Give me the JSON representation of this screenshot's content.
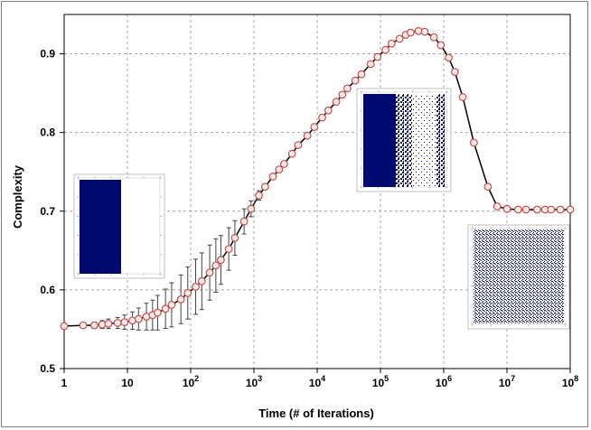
{
  "chart_data": {
    "type": "line",
    "title": "",
    "xlabel": "Time (# of Iterations)",
    "ylabel": "Complexity",
    "xscale": "log",
    "xlim": [
      1,
      100000000
    ],
    "ylim": [
      0.5,
      0.95
    ],
    "grid": true,
    "x_tick_labels": [
      {
        "base": "1",
        "exp": ""
      },
      {
        "base": "10",
        "exp": ""
      },
      {
        "base": "10",
        "exp": "2"
      },
      {
        "base": "10",
        "exp": "3"
      },
      {
        "base": "10",
        "exp": "4"
      },
      {
        "base": "10",
        "exp": "5"
      },
      {
        "base": "10",
        "exp": "6"
      },
      {
        "base": "10",
        "exp": "7"
      },
      {
        "base": "10",
        "exp": "8"
      }
    ],
    "x_tick_values": [
      1,
      10,
      100,
      1000,
      10000,
      100000,
      1000000,
      10000000,
      100000000
    ],
    "y_ticks": [
      0.5,
      0.6,
      0.7,
      0.8,
      0.9
    ],
    "y_tick_labels": [
      "0.5",
      "0.6",
      "0.7",
      "0.8",
      "0.9"
    ],
    "marker_color": "#c0504d",
    "marker_fill": "#fde9e7",
    "line_color": "#000000",
    "series": [
      {
        "x": [
          1,
          2,
          3,
          4,
          5,
          7,
          9,
          12,
          15,
          20,
          25,
          30,
          40,
          50,
          70,
          90,
          120,
          150,
          200,
          250,
          300,
          400,
          500,
          700,
          900,
          1200,
          1500,
          2000,
          2500,
          3000,
          4000,
          5000,
          7000,
          9000,
          12000,
          15000,
          20000,
          25000,
          30000,
          40000,
          50000,
          70000,
          90000,
          120000,
          150000,
          200000,
          250000,
          300000,
          400000,
          500000,
          700000,
          900000,
          1200000,
          1500000,
          2000000,
          3000000,
          5000000,
          7000000,
          10000000,
          15000000,
          20000000,
          30000000,
          40000000,
          50000000,
          70000000,
          100000000
        ],
        "y": [
          0.554,
          0.555,
          0.555,
          0.556,
          0.557,
          0.558,
          0.559,
          0.561,
          0.563,
          0.566,
          0.568,
          0.571,
          0.576,
          0.581,
          0.588,
          0.596,
          0.604,
          0.611,
          0.622,
          0.631,
          0.638,
          0.652,
          0.666,
          0.687,
          0.703,
          0.72,
          0.731,
          0.744,
          0.753,
          0.76,
          0.773,
          0.784,
          0.796,
          0.807,
          0.819,
          0.828,
          0.839,
          0.848,
          0.856,
          0.866,
          0.874,
          0.887,
          0.896,
          0.905,
          0.913,
          0.919,
          0.924,
          0.927,
          0.929,
          0.928,
          0.921,
          0.911,
          0.895,
          0.877,
          0.845,
          0.787,
          0.731,
          0.706,
          0.703,
          0.702,
          0.702,
          0.702,
          0.702,
          0.702,
          0.702,
          0.702
        ],
        "err": [
          0,
          0.003,
          0.004,
          0.005,
          0.006,
          0.007,
          0.009,
          0.011,
          0.014,
          0.017,
          0.019,
          0.022,
          0.025,
          0.028,
          0.031,
          0.033,
          0.035,
          0.036,
          0.035,
          0.034,
          0.031,
          0.027,
          0.022,
          0.016,
          0.01,
          0.006,
          0.003,
          0,
          0,
          0,
          0,
          0,
          0,
          0,
          0,
          0,
          0,
          0,
          0,
          0,
          0,
          0,
          0,
          0,
          0,
          0,
          0,
          0,
          0,
          0,
          0,
          0,
          0,
          0,
          0,
          0,
          0,
          0,
          0,
          0,
          0,
          0,
          0,
          0,
          0,
          0
        ]
      }
    ],
    "insets": [
      {
        "kind": "solid-block",
        "near_x": 10,
        "fill": "#000a6e",
        "fill_fraction": 0.5
      },
      {
        "kind": "partial-mixed",
        "near_x": 316000,
        "fill": "#000a6e",
        "fill_fraction": 0.5
      },
      {
        "kind": "fully-mixed",
        "near_x": 100000000,
        "fill": "#000a6e",
        "fill_fraction": 0.5
      }
    ]
  }
}
